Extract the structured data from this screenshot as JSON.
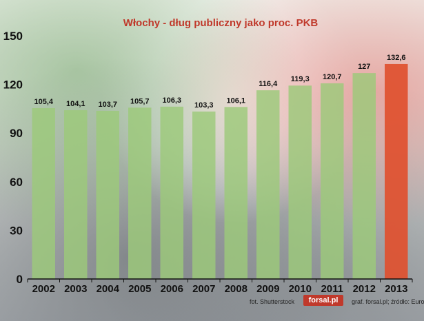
{
  "chart_data": {
    "type": "bar",
    "title": "Włochy - dług publiczny jako proc. PKB",
    "xlabel": "",
    "ylabel": "",
    "categories": [
      "2002",
      "2003",
      "2004",
      "2005",
      "2006",
      "2007",
      "2008",
      "2009",
      "2010",
      "2011",
      "2012",
      "2013"
    ],
    "values": [
      105.4,
      104.1,
      103.7,
      105.7,
      106.3,
      103.3,
      106.1,
      116.4,
      119.3,
      120.7,
      127,
      132.6
    ],
    "value_labels": [
      "105,4",
      "104,1",
      "103,7",
      "105,7",
      "106,3",
      "103,3",
      "106,1",
      "116,4",
      "119,3",
      "120,7",
      "127",
      "132,6"
    ],
    "ylim": [
      0,
      150
    ],
    "yticks": [
      0,
      30,
      60,
      90,
      120,
      150
    ],
    "grid": false,
    "colors": {
      "default": "#9cc97a",
      "highlight": "#e0502f",
      "title": "#c0392b"
    },
    "highlight_index": 11
  },
  "credits": {
    "photo": "fot. Shutterstock",
    "logo": "forsal.pl",
    "source": "graf. forsal.pl; źródło: Eurostat"
  }
}
